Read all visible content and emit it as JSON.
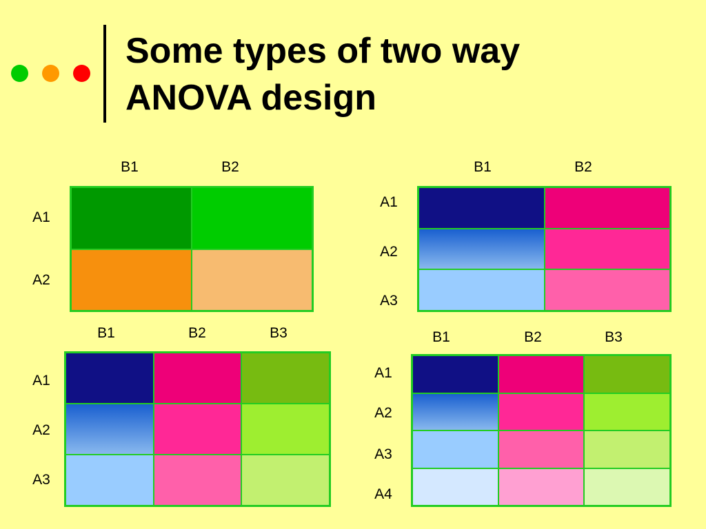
{
  "header": {
    "title_line1": "Some types of two way",
    "title_line2": "ANOVA design",
    "dot_colors": [
      "#00cc00",
      "#ff9900",
      "#ff0000"
    ]
  },
  "designs": [
    {
      "col_labels": [
        "B1",
        "B2"
      ],
      "row_labels": [
        "A1",
        "A2"
      ],
      "cells": [
        [
          "#009900",
          "#00cc00"
        ],
        [
          "#f7900d",
          "#f7bb70"
        ]
      ]
    },
    {
      "col_labels": [
        "B1",
        "B2"
      ],
      "row_labels": [
        "A1",
        "A2",
        "A3"
      ],
      "cells": [
        [
          "#101085",
          "#ee0078"
        ],
        [
          "gradient:#1a60d0:#88b8ee",
          "#ff2896"
        ],
        [
          "#99ccff",
          "#ff60aa"
        ]
      ]
    },
    {
      "col_labels": [
        "B1",
        "B2",
        "B3"
      ],
      "row_labels": [
        "A1",
        "A2",
        "A3"
      ],
      "cells": [
        [
          "#101085",
          "#ee0078",
          "#77bb11"
        ],
        [
          "gradient:#1a60d0:#88b8ee",
          "#ff2896",
          "#9eee30"
        ],
        [
          "#99ccff",
          "#ff60aa",
          "#c2f070"
        ]
      ]
    },
    {
      "col_labels": [
        "B1",
        "B2",
        "B3"
      ],
      "row_labels": [
        "A1",
        "A2",
        "A3",
        "A4"
      ],
      "cells": [
        [
          "#101085",
          "#ee0078",
          "#77bb11"
        ],
        [
          "gradient:#1a60d0:#88b8ee",
          "#ff2896",
          "#9eee30"
        ],
        [
          "#99ccff",
          "#ff60aa",
          "#c2f070"
        ],
        [
          "#d4e8ff",
          "#ffa0d2",
          "#dcf8b2"
        ]
      ]
    }
  ]
}
